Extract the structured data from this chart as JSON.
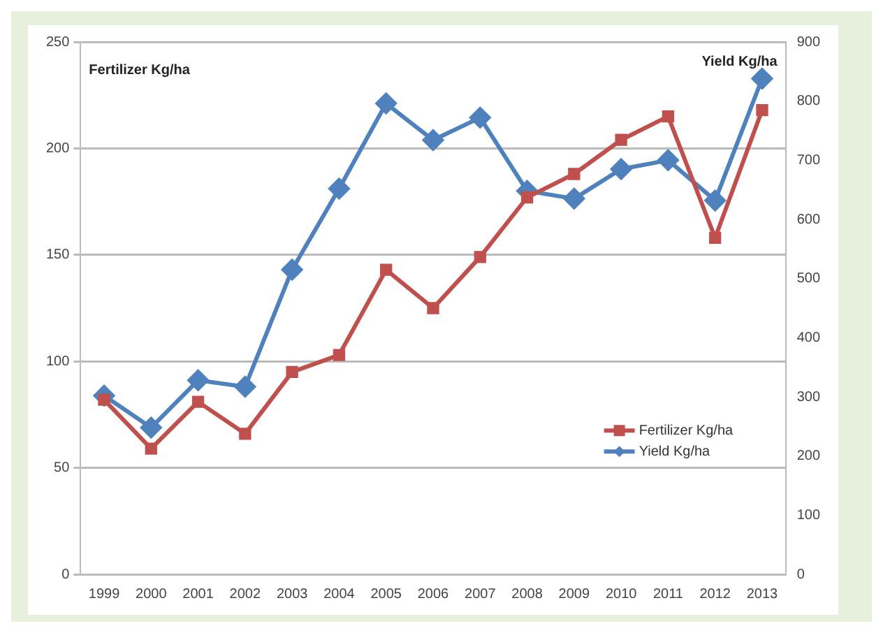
{
  "chart_data": {
    "type": "line",
    "categories": [
      "1999",
      "2000",
      "2001",
      "2002",
      "2003",
      "2004",
      "2005",
      "2006",
      "2007",
      "2008",
      "2009",
      "2010",
      "2011",
      "2012",
      "2013"
    ],
    "series": [
      {
        "name": "Fertilizer Kg/ha",
        "color": "#c0504d",
        "marker": "square",
        "values": [
          82,
          59,
          81,
          66,
          95,
          103,
          143,
          125,
          149,
          177,
          188,
          204,
          215,
          158,
          218
        ]
      },
      {
        "name": "Yield Kg/ha",
        "color": "#4f81bd",
        "marker": "diamond",
        "axis": "y2",
        "values": [
          302,
          248,
          328,
          317,
          515,
          652,
          796,
          734,
          772,
          648,
          635,
          685,
          700,
          632,
          838
        ]
      }
    ],
    "ylabel": "Fertilizer Kg/ha",
    "y2label": "Yield Kg/ha",
    "ylim": [
      0,
      250
    ],
    "yticks": [
      0,
      50,
      100,
      150,
      200,
      250
    ],
    "y2lim": [
      0,
      900
    ],
    "y2ticks": [
      0,
      100,
      200,
      300,
      400,
      500,
      600,
      700,
      800,
      900
    ],
    "grid": "y",
    "legend": "right"
  }
}
